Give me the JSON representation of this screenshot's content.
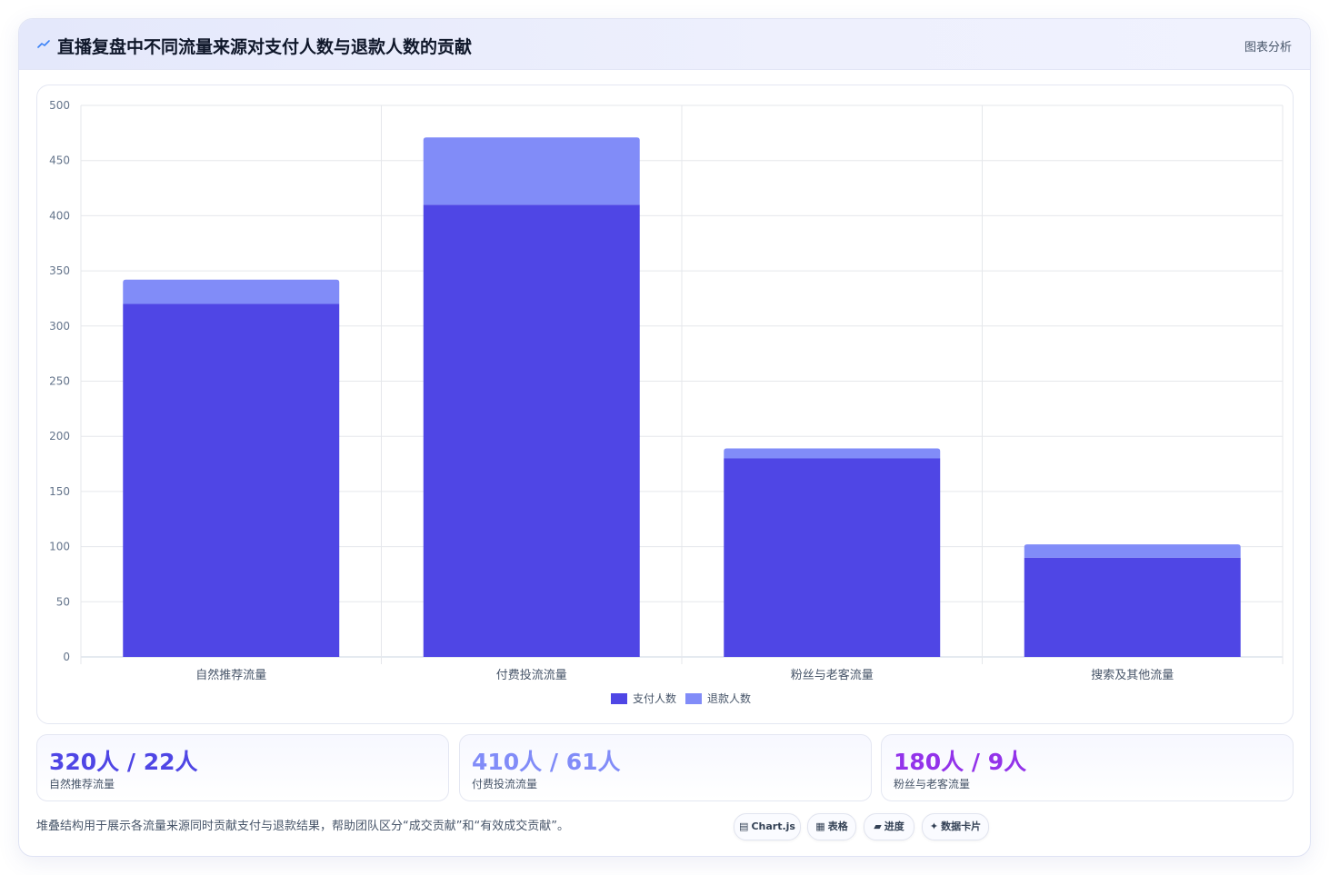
{
  "header": {
    "title": "直播复盘中不同流量来源对支付人数与退款人数的贡献",
    "tag": "图表分析",
    "icon": "trend-line-icon"
  },
  "chart_data": {
    "type": "bar",
    "stacked": true,
    "categories": [
      "自然推荐流量",
      "付费投流流量",
      "粉丝与老客流量",
      "搜索及其他流量"
    ],
    "series": [
      {
        "name": "支付人数",
        "values": [
          320,
          410,
          180,
          90
        ],
        "color": "#4f46e5"
      },
      {
        "name": "退款人数",
        "values": [
          22,
          61,
          9,
          12
        ],
        "color": "#818cf8"
      }
    ],
    "ylim": [
      0,
      500
    ],
    "yticks": [
      0,
      50,
      100,
      150,
      200,
      250,
      300,
      350,
      400,
      450,
      500
    ],
    "grid": true,
    "legend": "bottom"
  },
  "stats": [
    {
      "value": "320人 / 22人",
      "label": "自然推荐流量",
      "color": "#4f46e5"
    },
    {
      "value": "410人 / 61人",
      "label": "付费投流流量",
      "color": "#818cf8"
    },
    {
      "value": "180人 / 9人",
      "label": "粉丝与老客流量",
      "color": "#9333ea"
    }
  ],
  "footnote": "堆叠结构用于展示各流量来源同时贡献支付与退款结果，帮助团队区分“成交贡献”和“有效成交贡献”。",
  "pills": [
    {
      "icon": "▤",
      "label": "Chart.js",
      "icon_name": "chart-icon"
    },
    {
      "icon": "▦",
      "label": "表格",
      "icon_name": "table-icon"
    },
    {
      "icon": "▰",
      "label": "进度",
      "icon_name": "progress-icon"
    },
    {
      "icon": "✦",
      "label": "数据卡片",
      "icon_name": "sparkle-icon"
    }
  ]
}
